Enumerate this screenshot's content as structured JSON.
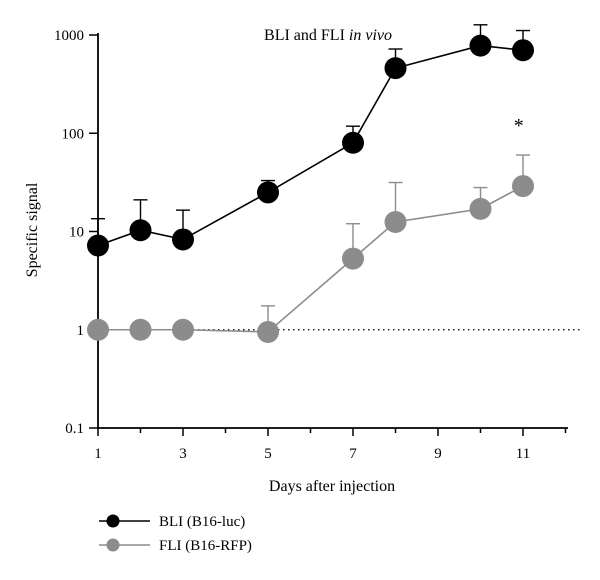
{
  "chart_data": {
    "type": "line",
    "title_main": "BLI and FLI ",
    "title_italic": "in vivo",
    "xlabel": "Days after injection",
    "ylabel": "Specific signal",
    "xlim": [
      1,
      12
    ],
    "x_ticks": [
      1,
      3,
      5,
      7,
      9,
      11
    ],
    "x_tick_labels": [
      "1",
      "3",
      "5",
      "7",
      "9",
      "11"
    ],
    "yscale": "log",
    "ylim": [
      0.1,
      1000
    ],
    "y_ticks": [
      0.1,
      1,
      10,
      100,
      1000
    ],
    "y_tick_labels": [
      "0.1",
      "1",
      "10",
      "100",
      "1000"
    ],
    "reference_line": {
      "y": 1,
      "style": "dotted"
    },
    "annotations": [
      {
        "x": 10.9,
        "y": 130,
        "text": "*"
      }
    ],
    "legend_position": "bottom-left",
    "series": [
      {
        "name": "BLI (B16-luc)",
        "color": "#000000",
        "x": [
          1,
          2,
          3,
          5,
          7,
          8,
          10,
          11
        ],
        "y": [
          7.2,
          10.3,
          8.3,
          25,
          80,
          460,
          780,
          700
        ],
        "error_upper": [
          13.5,
          21,
          16.5,
          33,
          118,
          720,
          1270,
          1110
        ]
      },
      {
        "name": "FLI (B16-RFP)",
        "color": "#8c8c8c",
        "x": [
          1,
          2,
          3,
          5,
          7,
          8,
          10,
          11
        ],
        "y": [
          1.0,
          1.0,
          1.0,
          0.95,
          5.3,
          12.5,
          17,
          29
        ],
        "error_upper": [
          null,
          null,
          null,
          1.75,
          12.0,
          31.5,
          28,
          60
        ]
      }
    ]
  }
}
